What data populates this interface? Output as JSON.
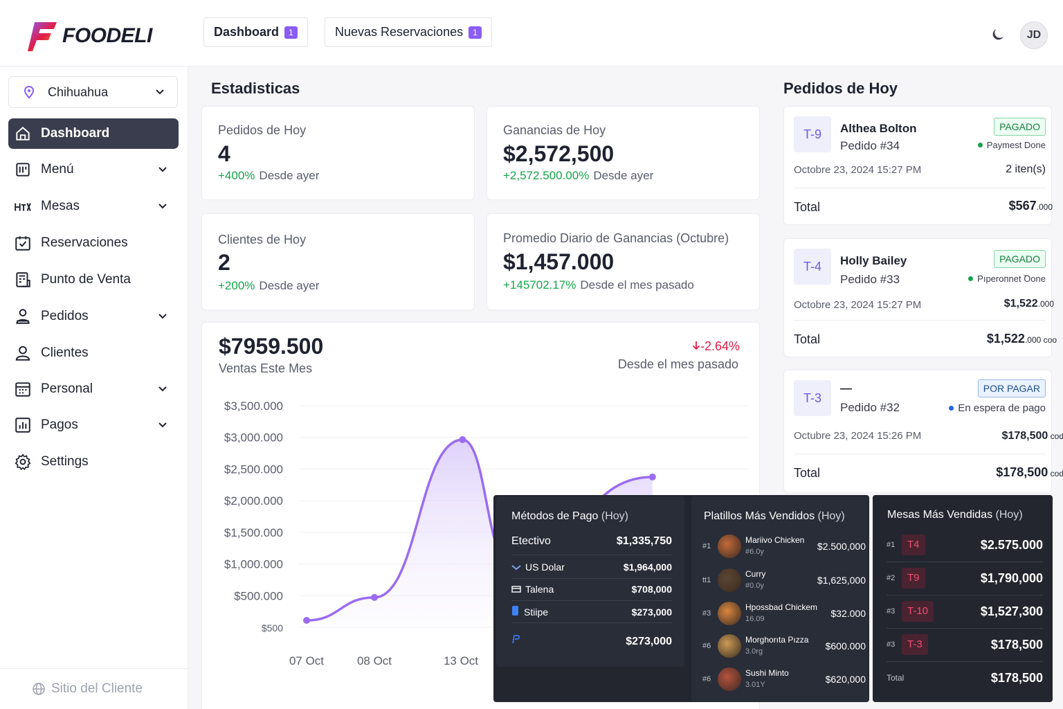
{
  "brand": {
    "name": "FOODELI",
    "colors": {
      "accent": "#8b5cf6",
      "dark": "#3a3d4d",
      "positive": "#16a34a",
      "negative": "#e11d48"
    }
  },
  "header": {
    "tabs": [
      {
        "label": "Dashboard",
        "count": "1"
      },
      {
        "label": "Nuevas Reservaciones",
        "count": "1"
      }
    ],
    "theme_icon": "moon-icon",
    "user_initials": "JD"
  },
  "sidebar": {
    "city": "Chihuahua",
    "items": [
      {
        "label": "Dashboard",
        "icon": "home-icon",
        "expandable": false,
        "active": true
      },
      {
        "label": "Menú",
        "icon": "menu-icon",
        "expandable": true
      },
      {
        "label": "Mesas",
        "icon": "tables-icon",
        "expandable": true
      },
      {
        "label": "Reservaciones",
        "icon": "calendar-check-icon",
        "expandable": false
      },
      {
        "label": "Punto de Venta",
        "icon": "pos-icon",
        "expandable": false
      },
      {
        "label": "Pedidos",
        "icon": "orders-icon",
        "expandable": true
      },
      {
        "label": "Clientes",
        "icon": "user-icon",
        "expandable": false
      },
      {
        "label": "Personal",
        "icon": "staff-icon",
        "expandable": true
      },
      {
        "label": "Pagos",
        "icon": "chart-bar-icon",
        "expandable": true
      },
      {
        "label": "Settings",
        "icon": "gear-icon",
        "expandable": false
      }
    ],
    "footer": "Sitio del Cliente"
  },
  "stats": {
    "title": "Estadisticas",
    "cards": [
      {
        "label": "Pedidos de Hoy",
        "value": "4",
        "change": "+400%",
        "change_label": "Desde ayer"
      },
      {
        "label": "Ganancias de Hoy",
        "value": "$2,572,500",
        "change": "+2,572.500.00%",
        "change_label": "Desde ayer"
      },
      {
        "label": "Clientes de Hoy",
        "value": "2",
        "change": "+200%",
        "change_label": "Desde ayer"
      },
      {
        "label": "Promedio Diario de Ganancias (Octubre)",
        "value": "$1,457.000",
        "change": "+145702.17%",
        "change_label": "Desde el mes pasado"
      }
    ]
  },
  "sales": {
    "value": "$7959.500",
    "label": "Ventas Este Mes",
    "change": "-2.64%",
    "change_label": "Desde el mes pasado"
  },
  "chart_data": {
    "type": "area",
    "y_ticks": [
      "$3,500.000",
      "$3,000.000",
      "$2,500.000",
      "$2,000.000",
      "$1,500.000",
      "$1,000.000",
      "$500.000",
      "$500"
    ],
    "x_ticks": [
      "07 Oct",
      "08 Oct",
      "13 Oct"
    ],
    "ylim": [
      0,
      3500000
    ],
    "series": [
      {
        "color": "#9b6cf0",
        "points": [
          [
            0,
            0
          ],
          [
            1,
            400000
          ],
          [
            2.3,
            3150000
          ],
          [
            3.0,
            1000000
          ],
          [
            5.1,
            2500000
          ]
        ]
      }
    ]
  },
  "orders": {
    "title": "Pedidos de Hoy",
    "list": [
      {
        "table": "T-9",
        "customer": "Althea Bolton",
        "order": "Pedido #34",
        "status": "PAGADO",
        "status_type": "paid",
        "status_sub": "Paymest Done",
        "date": "Octobre 23, 2024 15:27 PM",
        "items": "2 iten(s)",
        "total_label": "Total",
        "total": "$567",
        "total_suffix": ".000"
      },
      {
        "table": "T-4",
        "customer": "Holly Bailey",
        "order": "Pedido #33",
        "status": "PAGADO",
        "status_type": "paid",
        "status_sub": "Pıperoпnet Ꝺone",
        "date": "Octobre 23, 2024 15:27 PM",
        "items": "$1,522",
        "items_suffix": ".000",
        "total_label": "Total",
        "total": "$1,522",
        "total_suffix": ".000 coo"
      },
      {
        "table": "T-3",
        "customer": "—",
        "order": "Pedido #32",
        "status": "POR PAGAR",
        "status_type": "unpaid",
        "status_sub": "En espera de pago",
        "date": "Octubre 23, 2024 15:26 PM",
        "items": "$178,500",
        "items_suffix": " cod",
        "total_label": "Total",
        "total": "$178,500",
        "total_suffix": " cod"
      }
    ]
  },
  "payment_methods": {
    "title": "Métodos de Pago",
    "title_suffix": "(Hoy)",
    "rows": [
      {
        "name": "Etectivo",
        "value": "$1,335,750",
        "icon": ""
      },
      {
        "name": "US Dolar",
        "value": "$1,964,000",
        "icon": "dollar-icon"
      },
      {
        "name": "Talena",
        "value": "$708,000",
        "icon": "card-icon"
      },
      {
        "name": "Stiipe",
        "value": "$273,000",
        "icon": "stripe-icon"
      },
      {
        "name": "",
        "value": "$273,000",
        "icon": "paypal-icon"
      }
    ]
  },
  "top_dishes": {
    "title": "Platillos Más Vendidos",
    "title_suffix": "(Hoy)",
    "rows": [
      {
        "rank": "#1",
        "name": "Mariivo Chicken",
        "sub": "#6.0y",
        "value": "$2.500,000",
        "img": "#c26a3a"
      },
      {
        "rank": "tt1",
        "name": "Curry",
        "sub": "#0.0y",
        "value": "$1,625,000",
        "img": "#5b4632"
      },
      {
        "rank": "#3",
        "name": "Hpossbad Chickem",
        "sub": "16.09",
        "value": "$32.000",
        "img": "#d9863f"
      },
      {
        "rank": "#6",
        "name": "Morghorıta Pızza",
        "sub": "3.0rg",
        "value": "$600.000",
        "img": "#c99b56"
      },
      {
        "rank": "#6",
        "name": "Sushi Minto",
        "sub": "3.01Y",
        "value": "$620,000",
        "img": "#b5523f"
      }
    ]
  },
  "top_tables": {
    "title": "Mesas Más Vendidas",
    "title_suffix": "(Hoy)",
    "rows": [
      {
        "rank": "#1",
        "table": "T4",
        "value": "$2.575.000"
      },
      {
        "rank": "#2",
        "table": "T9",
        "value": "$1,790,000"
      },
      {
        "rank": "#3",
        "table": "T-10",
        "value": "$1,527,300"
      },
      {
        "rank": "#3",
        "table": "T-3",
        "value": "$178,500"
      }
    ],
    "total_label": "Total",
    "total": "$178,500"
  }
}
